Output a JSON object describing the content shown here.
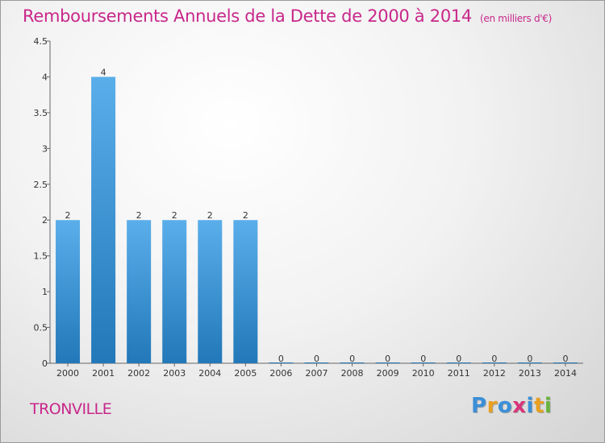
{
  "header": {
    "title": "Remboursements Annuels de la Dette de 2000 à 2014",
    "unit": "(en milliers d'€)"
  },
  "footer": {
    "commune": "TRONVILLE",
    "logo_letters": [
      "P",
      "r",
      "o",
      "x",
      "i",
      "t",
      "i"
    ],
    "logo_colors": [
      "#3a8fd8",
      "#e8a020",
      "#3a8fd8",
      "#d8347a",
      "#3a8fd8",
      "#e8a020",
      "#6ab43c"
    ]
  },
  "chart_data": {
    "type": "bar",
    "categories": [
      "2000",
      "2001",
      "2002",
      "2003",
      "2004",
      "2005",
      "2006",
      "2007",
      "2008",
      "2009",
      "2010",
      "2011",
      "2012",
      "2013",
      "2014"
    ],
    "values": [
      2,
      4,
      2,
      2,
      2,
      2,
      0,
      0,
      0,
      0,
      0,
      0,
      0,
      0,
      0
    ],
    "value_labels": [
      "2",
      "4",
      "2",
      "2",
      "2",
      "2",
      "0",
      "0",
      "0",
      "0",
      "0",
      "0",
      "0",
      "0",
      "0"
    ],
    "ylim": [
      0,
      4.5
    ],
    "yticks": [
      "0",
      "0.5",
      "1",
      "1.5",
      "2",
      "2.5",
      "3",
      "3.5",
      "4",
      "4.5"
    ],
    "ytick_values": [
      0,
      0.5,
      1,
      1.5,
      2,
      2.5,
      3,
      3.5,
      4,
      4.5
    ],
    "bar_color_light": "#5aaeea",
    "bar_color_dark": "#2278b8",
    "grid": false
  }
}
